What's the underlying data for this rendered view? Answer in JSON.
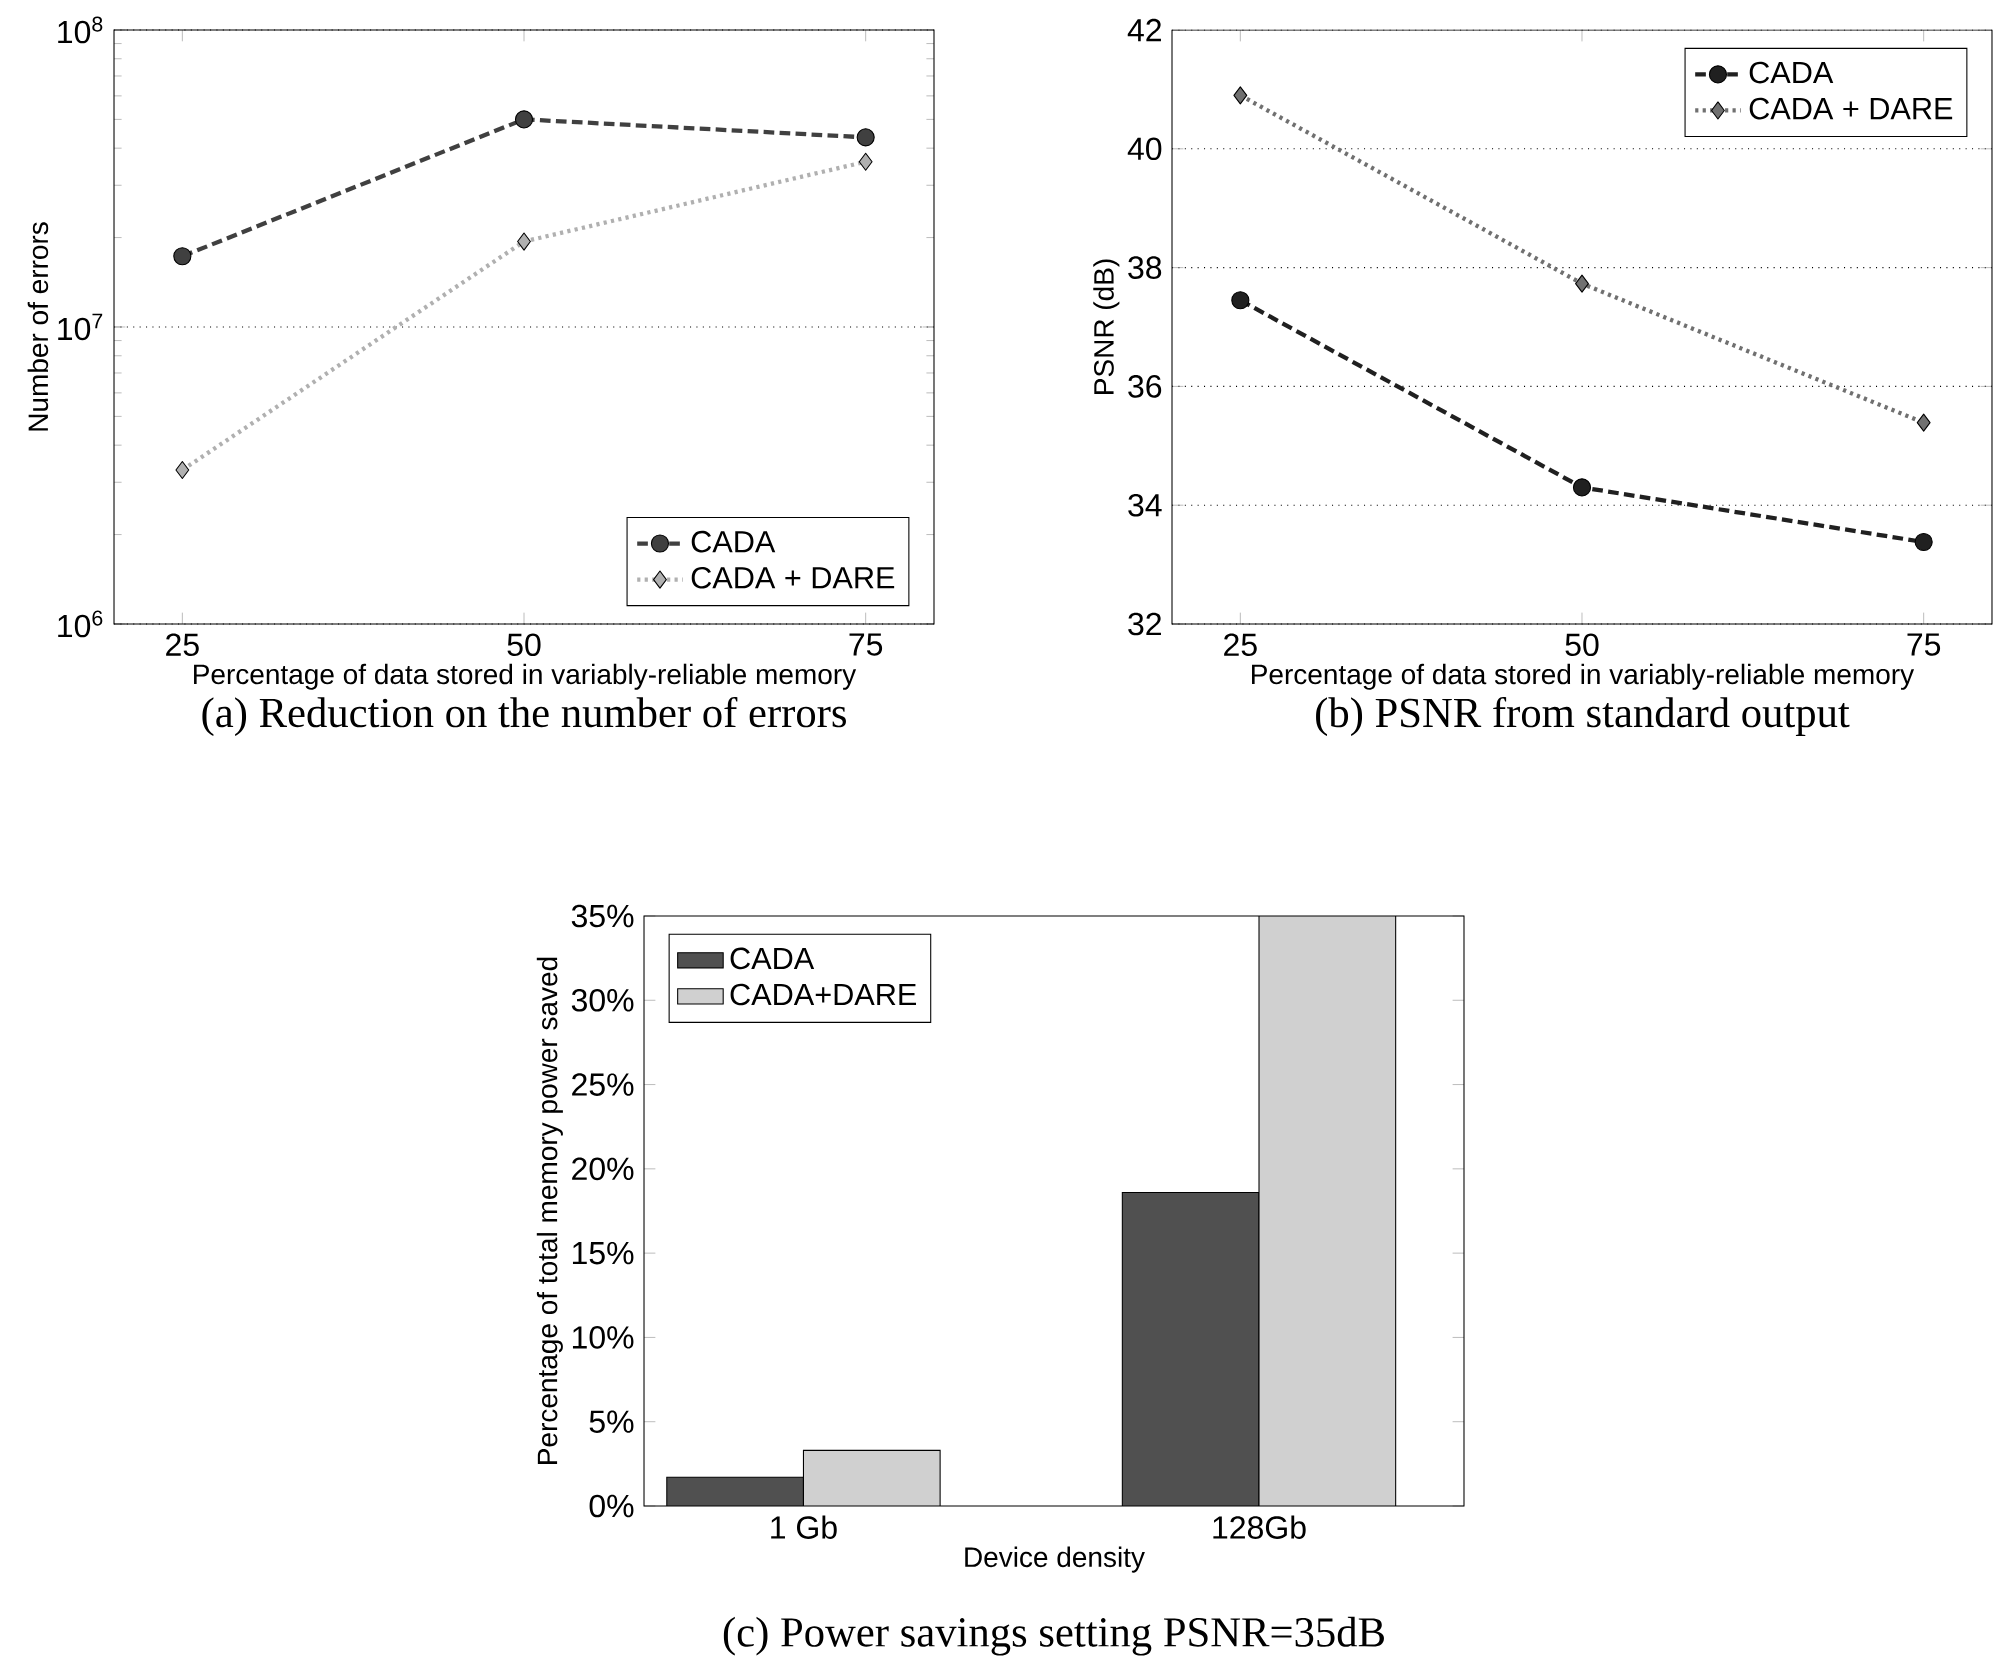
{
  "chart_data": [
    {
      "type": "line",
      "title": "(a) Reduction on the number of errors",
      "xlabel": "Percentage of data stored in variably-reliable memory",
      "ylabel": "Number of errors",
      "x": [
        25,
        50,
        75
      ],
      "xlim": [
        20,
        80
      ],
      "xticks": [
        25,
        50,
        75
      ],
      "log": "y",
      "ylim": [
        1000000,
        100000000
      ],
      "yticks": [
        {
          "value": 1000000,
          "label": "10$^{6}$"
        },
        {
          "value": 10000000,
          "label": "10$^{7}$"
        },
        {
          "value": 100000000,
          "label": "10$^{8}$"
        }
      ],
      "grid": "y",
      "legend": "bottom right",
      "series": [
        {
          "name": "CADA",
          "color": "#404040",
          "values": [
            17300000,
            50000000,
            43500000
          ],
          "marker": "circle",
          "line_style": "dashed"
        },
        {
          "name": "CADA + DARE",
          "color": "#b0b0b0",
          "values": [
            3300000,
            19400000,
            36000000
          ],
          "marker": "diamond",
          "line_style": "dotted"
        }
      ]
    },
    {
      "type": "line",
      "title": "(b) PSNR from standard output",
      "xlabel": "Percentage of data stored in variably-reliable memory",
      "ylabel": "PSNR (dB)",
      "x": [
        25,
        50,
        75
      ],
      "xlim": [
        20,
        80
      ],
      "xticks": [
        25,
        50,
        75
      ],
      "ylim": [
        32,
        42
      ],
      "yticks": [
        32,
        34,
        36,
        38,
        40,
        42
      ],
      "grid": "y",
      "legend": "top right",
      "series": [
        {
          "name": "CADA",
          "color": "#202020",
          "values": [
            37.45,
            34.3,
            33.38
          ],
          "marker": "circle",
          "line_style": "dashed"
        },
        {
          "name": "CADA + DARE",
          "color": "#707070",
          "values": [
            40.9,
            37.73,
            35.39
          ],
          "marker": "diamond",
          "line_style": "dotted"
        }
      ]
    },
    {
      "type": "bar",
      "title": "(c) Power savings setting PSNR=35dB",
      "xlabel": "Device density",
      "ylabel": "Percentage of total memory power saved",
      "categories": [
        "1 Gb",
        "128Gb"
      ],
      "ylim": [
        0,
        35
      ],
      "yticks": [
        {
          "value": 0,
          "label": "0%"
        },
        {
          "value": 5,
          "label": "5%"
        },
        {
          "value": 10,
          "label": "10%"
        },
        {
          "value": 15,
          "label": "15%"
        },
        {
          "value": 20,
          "label": "20%"
        },
        {
          "value": 25,
          "label": "25%"
        },
        {
          "value": 30,
          "label": "30%"
        },
        {
          "value": 35,
          "label": "35%"
        }
      ],
      "legend": "top left",
      "series": [
        {
          "name": "CADA",
          "color": "#505050",
          "values": [
            1.7,
            18.6
          ]
        },
        {
          "name": "CADA+DARE",
          "color": "#d0d0d0",
          "values": [
            3.3,
            35
          ]
        }
      ]
    }
  ]
}
